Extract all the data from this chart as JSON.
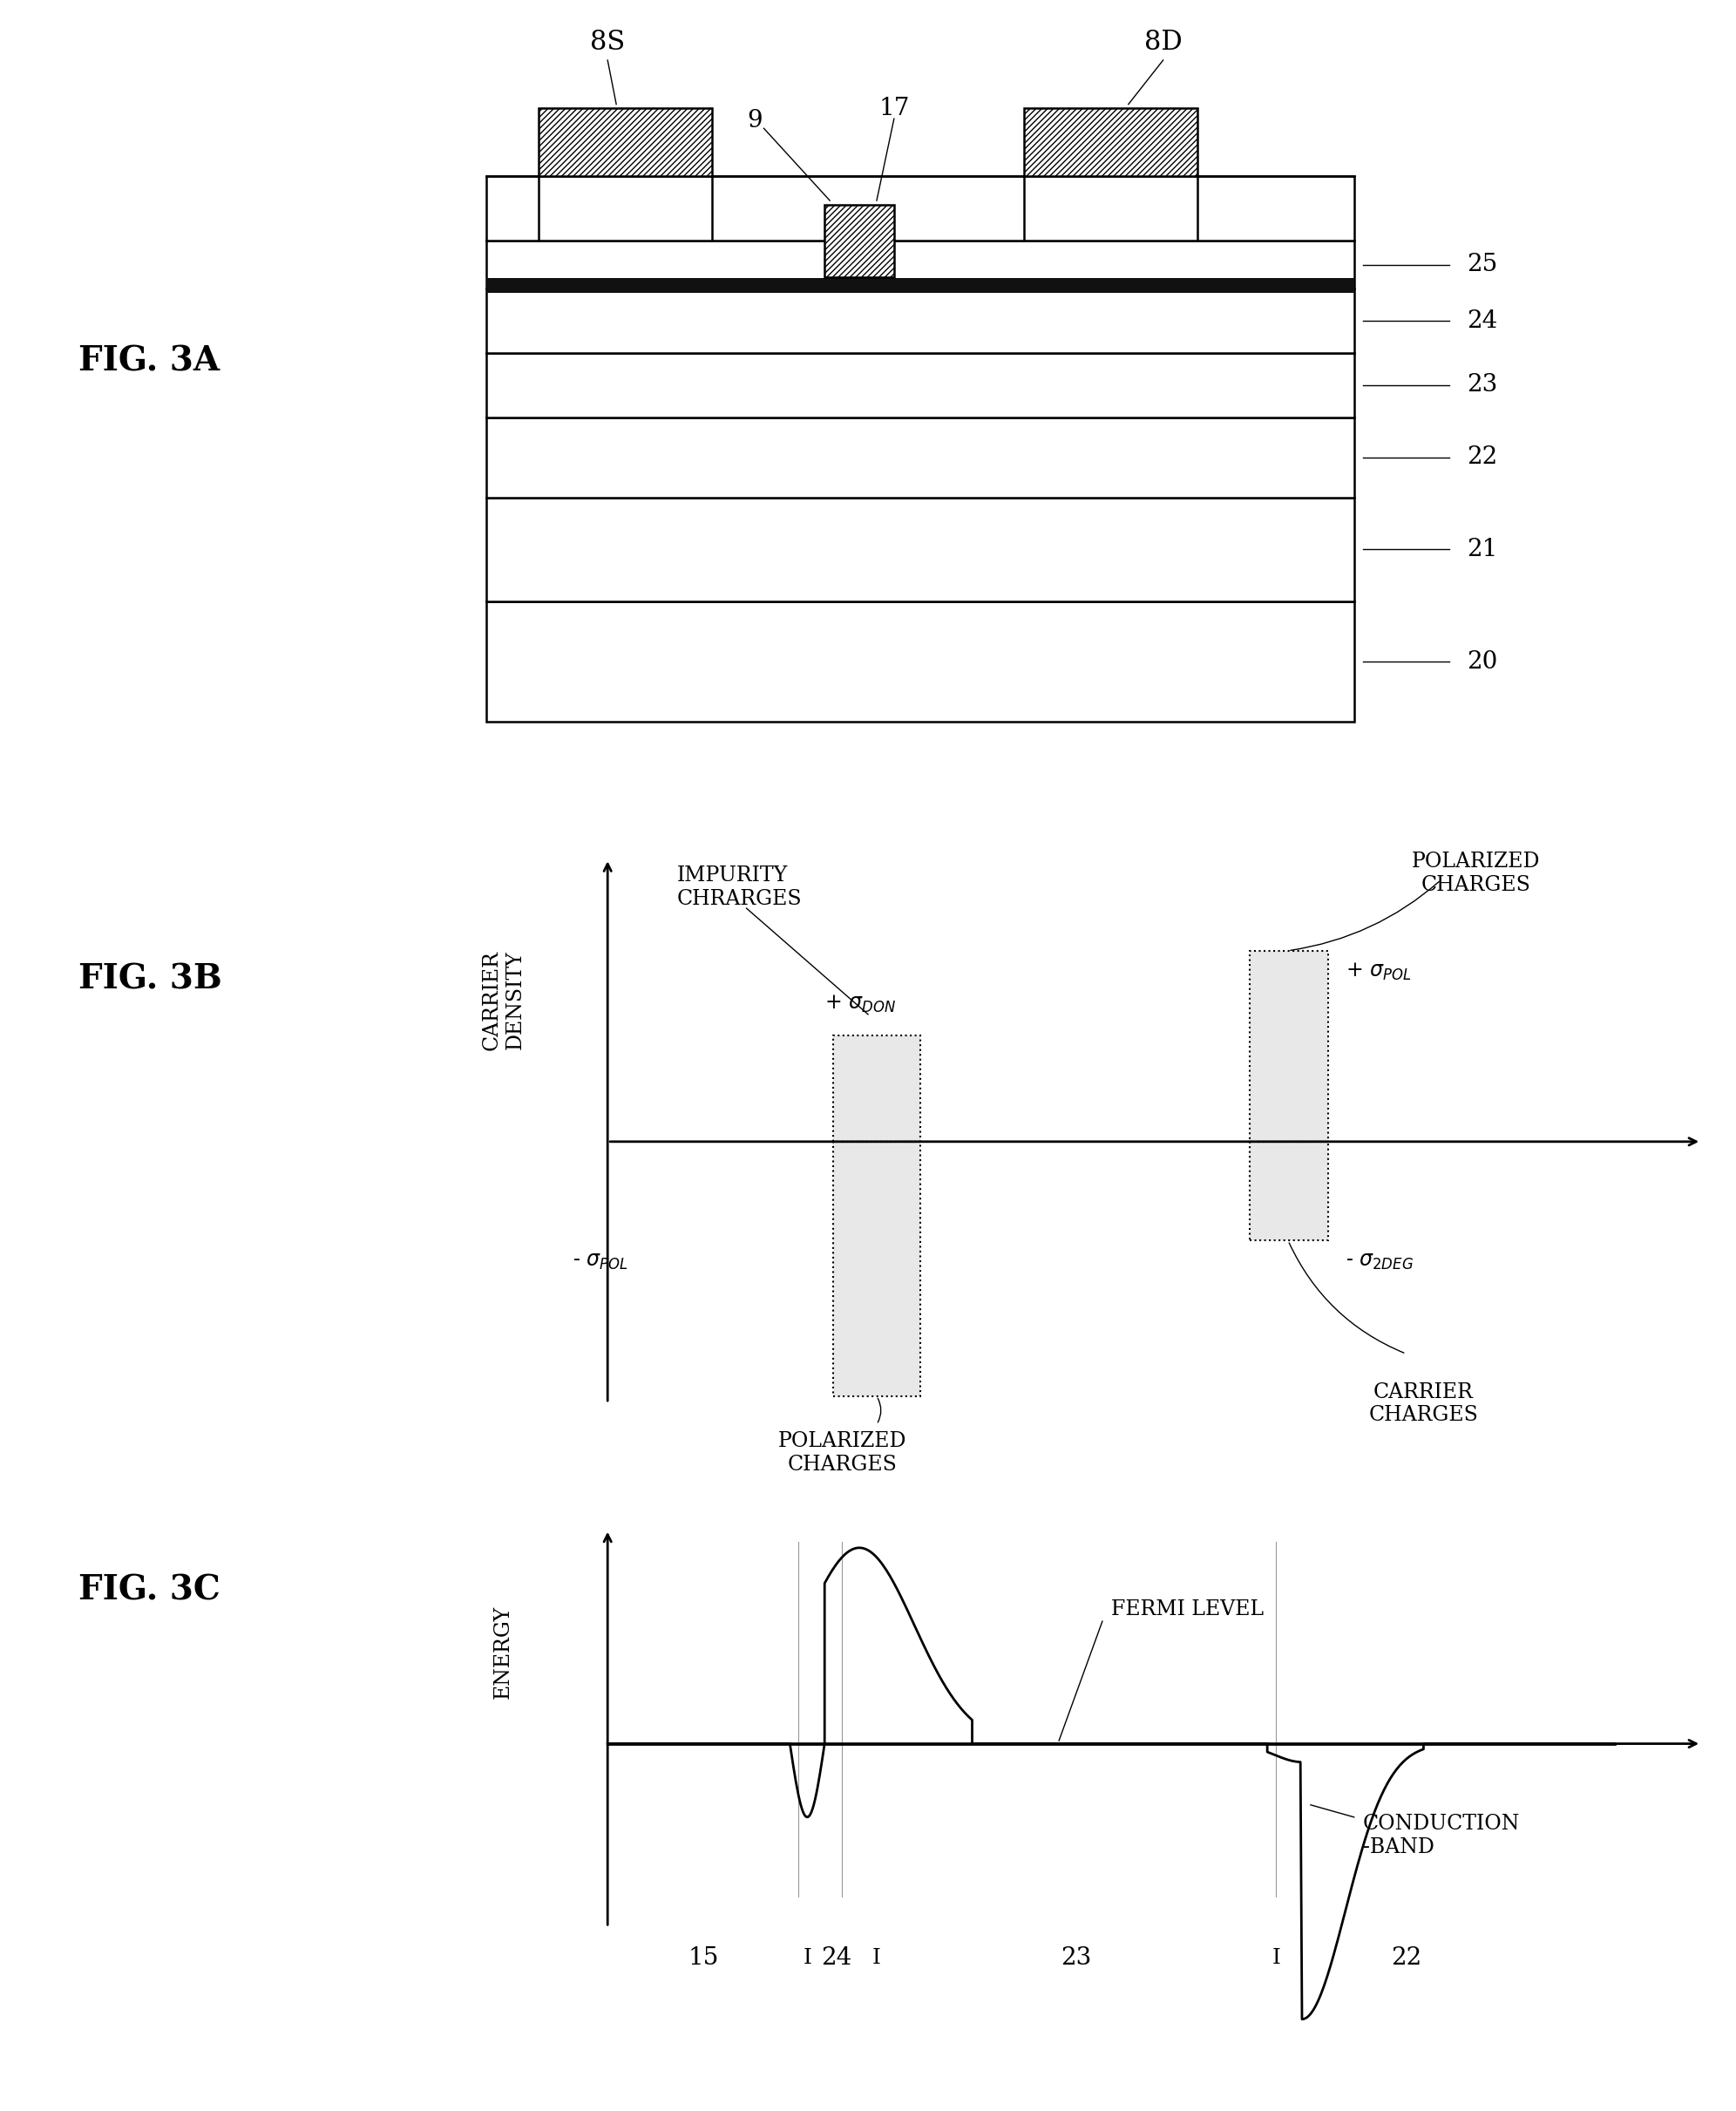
{
  "bg_color": "#ffffff",
  "fig_width": 19.92,
  "fig_height": 24.22,
  "fig_labels": [
    "FIG. 3A",
    "FIG. 3B",
    "FIG. 3C"
  ],
  "layer_numbers": [
    "25",
    "24",
    "23",
    "22",
    "21",
    "20"
  ],
  "contact_labels": [
    "8S",
    "8D"
  ],
  "gate_labels": [
    "9",
    "17"
  ],
  "bottom_labels": [
    "15",
    "24",
    "23",
    "22"
  ]
}
